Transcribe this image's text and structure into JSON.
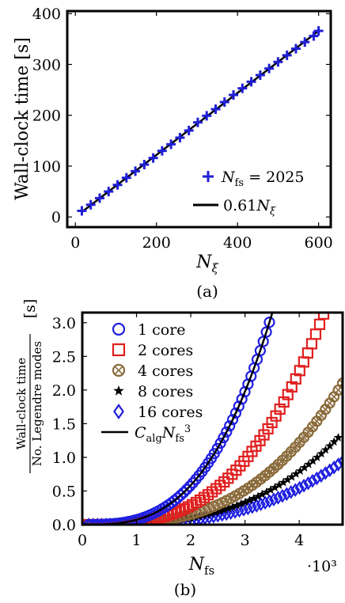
{
  "chart_data": [
    {
      "type": "scatter",
      "panel_label": "(a)",
      "xlabel": "Nξ",
      "ylabel": "Wall-clock time [s]",
      "xlim": [
        -20,
        630
      ],
      "ylim": [
        -20,
        405
      ],
      "xticks": [
        0,
        200,
        400,
        600
      ],
      "yticks": [
        0,
        100,
        200,
        300,
        400
      ],
      "legend_position": "lower-right",
      "series": [
        {
          "name": "N_fs = 2025",
          "marker": "plus",
          "color": "#1f1fd6",
          "x": [
            16,
            38,
            60,
            82,
            104,
            126,
            148,
            170,
            192,
            214,
            236,
            258,
            280,
            302,
            324,
            346,
            368,
            390,
            412,
            434,
            456,
            478,
            500,
            522,
            544,
            566,
            588,
            600
          ],
          "y": [
            12,
            24,
            37,
            50,
            63,
            77,
            90,
            103,
            116,
            130,
            143,
            156,
            170,
            186,
            199,
            212,
            226,
            240,
            253,
            266,
            279,
            292,
            305,
            318,
            331,
            344,
            356,
            366
          ]
        },
        {
          "name": "0.61Nξ",
          "type": "line",
          "color": "#000000",
          "x": [
            16,
            600
          ],
          "y": [
            9.8,
            366
          ]
        }
      ]
    },
    {
      "type": "scatter",
      "panel_label": "(b)",
      "xlabel": "N_fs",
      "x_multiplier": "·10³",
      "ylabel_top": "Wall-clock time",
      "ylabel_bottom": "No. Legendre modes",
      "ylabel_unit": "[s]",
      "xlim": [
        0,
        4.8
      ],
      "ylim": [
        0,
        3.15
      ],
      "xticks": [
        0,
        1,
        2,
        3,
        4
      ],
      "yticks": [
        0,
        0.5,
        1.0,
        1.5,
        2.0,
        2.5,
        3.0
      ],
      "ytick_labels": [
        "0.0",
        "0.5",
        "1.0",
        "1.5",
        "2.0",
        "2.5",
        "3.0"
      ],
      "legend_position": "upper-left",
      "series": [
        {
          "name": "1 core",
          "marker": "circle",
          "color": "#1f1fe0",
          "coef": 0.0732,
          "xmax": 3.45
        },
        {
          "name": "2 cores",
          "marker": "square",
          "color": "#e01f1f",
          "coef": 0.0355,
          "xmax": 4.45
        },
        {
          "name": "4 cores",
          "marker": "circle-x",
          "color": "#8a6a3a",
          "coef": 0.019,
          "xmax": 4.8
        },
        {
          "name": "8 cores",
          "marker": "star",
          "color": "#000000",
          "coef": 0.0123,
          "xmax": 4.72
        },
        {
          "name": "16 cores",
          "marker": "diamond",
          "color": "#1f1fe0",
          "coef": 0.0085,
          "xmax": 4.8
        },
        {
          "name": "C_alg N_fs³",
          "type": "line",
          "color": "#000000",
          "coef": 0.0732,
          "xmax": 3.5
        }
      ]
    }
  ]
}
